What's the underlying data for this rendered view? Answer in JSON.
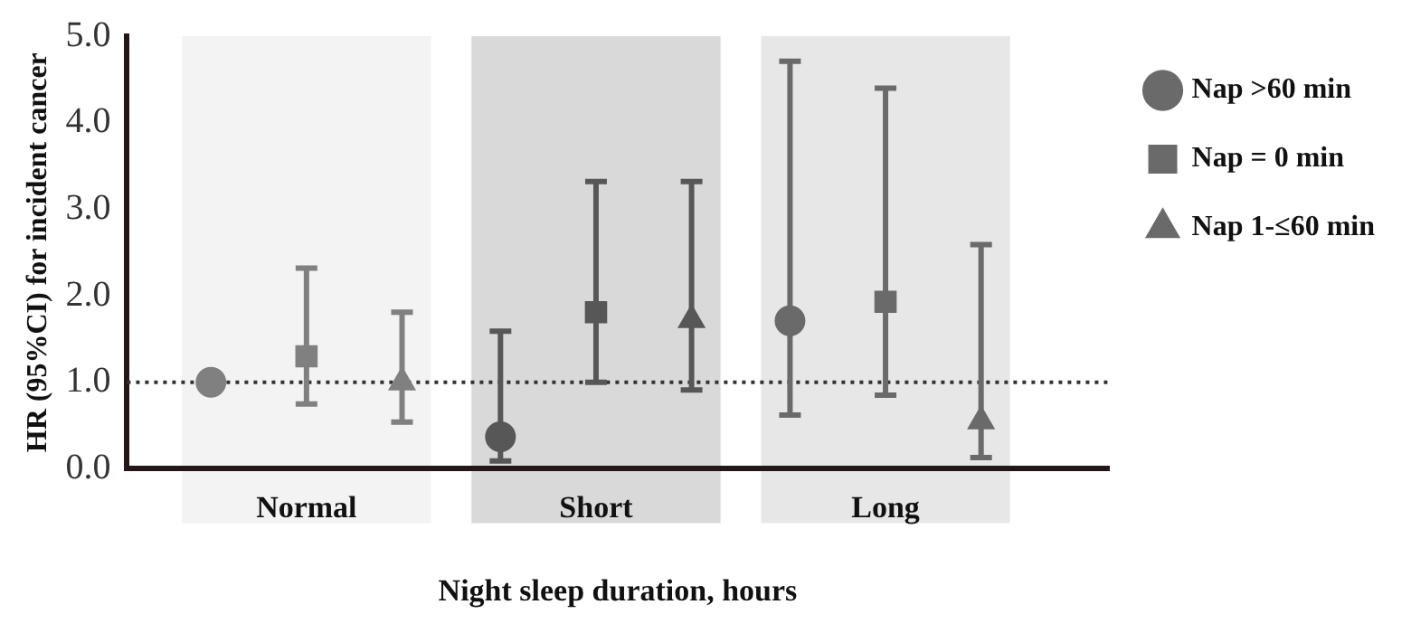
{
  "chart_data": {
    "type": "scatter",
    "categories": [
      "Normal",
      "Short",
      "Long"
    ],
    "xlabel": "Night sleep duration, hours",
    "ylabel": "HR (95%CI) for incident cancer",
    "ylim": [
      0,
      5
    ],
    "yticks": [
      {
        "value": 0,
        "label": "0.0"
      },
      {
        "value": 1,
        "label": "1.0"
      },
      {
        "value": 2,
        "label": "2.0"
      },
      {
        "value": 3,
        "label": "3.0"
      },
      {
        "value": 4,
        "label": "4.0"
      },
      {
        "value": 5,
        "label": "5.0"
      }
    ],
    "grid": false,
    "legend": "right",
    "series": [
      {
        "name": "Nap >60 min",
        "marker": "circle",
        "color": "#6a6a6a",
        "colors": [
          "#808080",
          "#575757",
          "#6a6a6a"
        ],
        "values": [
          1.0,
          0.37,
          1.71
        ],
        "errors": [
          null,
          [
            0.09,
            1.59
          ],
          [
            0.62,
            4.71
          ]
        ]
      },
      {
        "name": "Nap = 0 min",
        "marker": "square",
        "color": "#6a6a6a",
        "colors": [
          "#808080",
          "#575757",
          "#6a6a6a"
        ],
        "values": [
          1.3,
          1.81,
          1.93
        ],
        "errors": [
          [
            0.75,
            2.32
          ],
          [
            1.0,
            3.32
          ],
          [
            0.85,
            4.4
          ]
        ]
      },
      {
        "name": "Nap 1-≤60 min",
        "marker": "triangle",
        "color": "#6a6a6a",
        "colors": [
          "#808080",
          "#575757",
          "#6a6a6a"
        ],
        "values": [
          1.0,
          1.72,
          0.55
        ],
        "errors": [
          [
            0.54,
            1.81
          ],
          [
            0.91,
            3.32
          ],
          [
            0.13,
            2.59
          ]
        ]
      }
    ],
    "bands": [
      {
        "axis": "x",
        "from": "Normal",
        "to": "Normal",
        "color": "#f2f3f2"
      },
      {
        "axis": "x",
        "from": "Short",
        "to": "Short",
        "color": "#d9d9d9"
      },
      {
        "axis": "x",
        "from": "Long",
        "to": "Long",
        "color": "#e6e7e6"
      }
    ],
    "ref_lines": [
      {
        "axis": "y",
        "value": 1,
        "line_style": "dotted",
        "color": "#333333"
      }
    ]
  }
}
